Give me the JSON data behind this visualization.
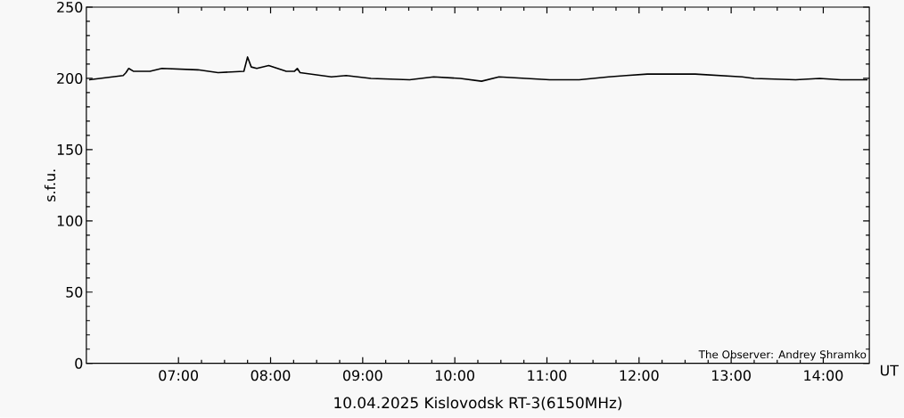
{
  "chart_data": {
    "type": "line",
    "title": "10.04.2025  Kislovodsk RT-3(6150MHz)",
    "xlabel": "UT",
    "ylabel": "s.f.u.",
    "annotations": [
      "The Observer: Andrey Shramko"
    ],
    "x": [
      6.03,
      6.4,
      6.43,
      6.46,
      6.51,
      6.69,
      6.82,
      7.21,
      7.43,
      7.71,
      7.75,
      7.79,
      7.85,
      7.98,
      8.17,
      8.26,
      8.29,
      8.32,
      8.66,
      8.82,
      9.09,
      9.51,
      9.77,
      10.06,
      10.29,
      10.48,
      11.03,
      11.35,
      11.67,
      11.86,
      12.09,
      12.28,
      12.61,
      13.12,
      13.25,
      13.7,
      13.96,
      14.19,
      14.48
    ],
    "series": [
      {
        "color": "#000000",
        "values": [
          199,
          202,
          204,
          207,
          205,
          205,
          207,
          206,
          204,
          205,
          215,
          208,
          207,
          209,
          205,
          205,
          207,
          204,
          201,
          202,
          200,
          199,
          201,
          200,
          198,
          201,
          199,
          199,
          201,
          202,
          203,
          203,
          203,
          201,
          200,
          199,
          200,
          199,
          199
        ]
      }
    ],
    "xlim": [
      6,
      14.5
    ],
    "ylim": [
      0,
      250
    ],
    "xticks": [
      {
        "value": 7,
        "label": "07:00"
      },
      {
        "value": 8,
        "label": "08:00"
      },
      {
        "value": 9,
        "label": "09:00"
      },
      {
        "value": 10,
        "label": "10:00"
      },
      {
        "value": 11,
        "label": "11:00"
      },
      {
        "value": 12,
        "label": "12:00"
      },
      {
        "value": 13,
        "label": "13:00"
      },
      {
        "value": 14,
        "label": "14:00"
      }
    ],
    "yticks": [
      0,
      50,
      100,
      150,
      200,
      250
    ]
  }
}
